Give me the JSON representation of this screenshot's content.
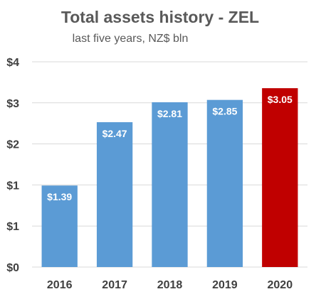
{
  "chart_data": {
    "type": "bar",
    "title": "Total assets history - ZEL",
    "subtitle": "last five years, NZ$ bln",
    "categories": [
      "2016",
      "2017",
      "2018",
      "2019",
      "2020"
    ],
    "values": [
      1.39,
      2.47,
      2.81,
      2.85,
      3.05
    ],
    "data_labels": [
      "$1.39",
      "$2.47",
      "$2.81",
      "$2.85",
      "$3.05"
    ],
    "bar_colors": [
      "#5b9bd5",
      "#5b9bd5",
      "#5b9bd5",
      "#5b9bd5",
      "#c00000"
    ],
    "y_tick_labels": [
      "$0",
      "$1",
      "$1",
      "$2",
      "$3",
      "$4"
    ],
    "ylim": [
      0,
      3.5
    ],
    "grid": true,
    "legend": "none"
  }
}
